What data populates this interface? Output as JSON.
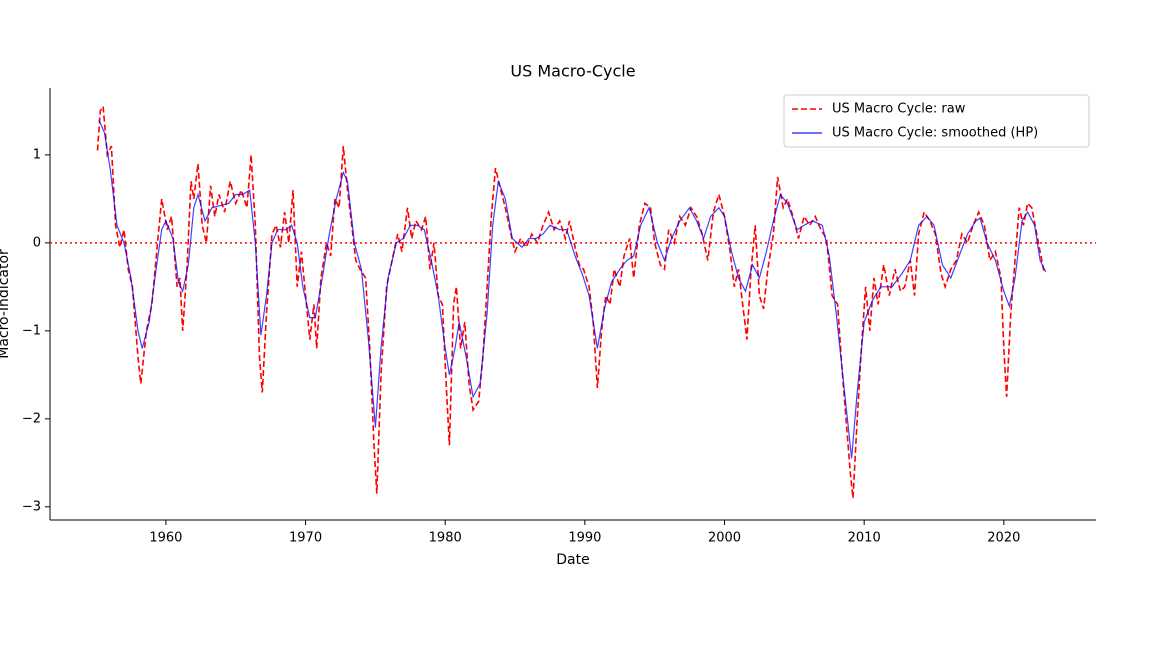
{
  "chart_data": {
    "type": "line",
    "title": "US Macro-Cycle",
    "xlabel": "Date",
    "ylabel": "Macro-Indicator",
    "xlim": [
      1951.7,
      2026.6
    ],
    "ylim": [
      -3.15,
      1.76
    ],
    "xticks": [
      1960,
      1970,
      1980,
      1990,
      2000,
      2010,
      2020
    ],
    "yticks": [
      {
        "value": -3,
        "label": "−3"
      },
      {
        "value": -2,
        "label": "−2"
      },
      {
        "value": -1,
        "label": "−1"
      },
      0,
      1
    ],
    "hline": 0,
    "hline_color": "red",
    "legend": "upper right",
    "series": [
      {
        "name": "US Macro Cycle: raw",
        "color": "red",
        "linestyle": "dashed",
        "x": [
          1955.1,
          1955.3,
          1955.5,
          1955.8,
          1956.1,
          1956.4,
          1956.7,
          1957,
          1957.3,
          1957.6,
          1958,
          1958.2,
          1958.6,
          1959,
          1959.4,
          1959.7,
          1960.1,
          1960.4,
          1960.8,
          1961,
          1961.2,
          1961.5,
          1961.8,
          1962,
          1962.3,
          1962.6,
          1962.9,
          1963.2,
          1963.5,
          1963.8,
          1964.2,
          1964.6,
          1965,
          1965.4,
          1965.8,
          1966.1,
          1966.4,
          1966.7,
          1966.9,
          1967.2,
          1967.6,
          1967.9,
          1968.2,
          1968.5,
          1968.8,
          1969.1,
          1969.4,
          1969.7,
          1970,
          1970.3,
          1970.6,
          1970.8,
          1971.1,
          1971.5,
          1971.8,
          1972.1,
          1972.4,
          1972.7,
          1973,
          1973.3,
          1973.6,
          1973.9,
          1974.3,
          1974.6,
          1974.9,
          1975.1,
          1975.4,
          1975.8,
          1976.2,
          1976.6,
          1976.9,
          1977.3,
          1977.6,
          1977.9,
          1978.3,
          1978.6,
          1978.9,
          1979.2,
          1979.5,
          1979.8,
          1980.1,
          1980.3,
          1980.6,
          1980.8,
          1981.1,
          1981.4,
          1981.7,
          1982,
          1982.4,
          1982.7,
          1983,
          1983.3,
          1983.6,
          1983.9,
          1984.3,
          1984.7,
          1985,
          1985.4,
          1985.8,
          1986.2,
          1986.6,
          1987,
          1987.4,
          1987.8,
          1988.2,
          1988.6,
          1988.9,
          1989.3,
          1989.6,
          1989.9,
          1990.3,
          1990.6,
          1990.9,
          1991.2,
          1991.5,
          1991.8,
          1992.1,
          1992.5,
          1992.8,
          1993.2,
          1993.5,
          1993.9,
          1994.3,
          1994.7,
          1995,
          1995.4,
          1995.7,
          1996,
          1996.4,
          1996.8,
          1997.2,
          1997.6,
          1998,
          1998.4,
          1998.8,
          1999.2,
          1999.6,
          2000,
          2000.4,
          2000.7,
          2001,
          2001.3,
          2001.6,
          2001.9,
          2002.2,
          2002.5,
          2002.8,
          2003.1,
          2003.5,
          2003.8,
          2004.2,
          2004.5,
          2004.9,
          2005.3,
          2005.7,
          2006.1,
          2006.5,
          2006.9,
          2007.3,
          2007.7,
          2008.1,
          2008.4,
          2008.7,
          2009,
          2009.2,
          2009.5,
          2009.8,
          2010.1,
          2010.4,
          2010.7,
          2011,
          2011.4,
          2011.8,
          2012.2,
          2012.6,
          2012.9,
          2013.3,
          2013.6,
          2013.9,
          2014.3,
          2014.7,
          2015.1,
          2015.5,
          2015.8,
          2016.2,
          2016.6,
          2017,
          2017.4,
          2017.8,
          2018.2,
          2018.6,
          2019,
          2019.4,
          2019.8,
          2020,
          2020.2,
          2020.5,
          2020.8,
          2021.1,
          2021.4,
          2021.7,
          2022,
          2022.3,
          2022.6,
          2022.9
        ],
        "values": [
          1.05,
          1.5,
          1.55,
          1.0,
          1.1,
          0.2,
          -0.05,
          0.15,
          -0.3,
          -0.5,
          -1.3,
          -1.6,
          -1.0,
          -0.7,
          0.0,
          0.5,
          0.15,
          0.3,
          -0.5,
          -0.4,
          -1.0,
          -0.3,
          0.7,
          0.5,
          0.9,
          0.2,
          0.0,
          0.65,
          0.3,
          0.55,
          0.35,
          0.7,
          0.45,
          0.6,
          0.4,
          1.0,
          0.2,
          -1.3,
          -1.7,
          -0.8,
          0.1,
          0.2,
          -0.05,
          0.35,
          0.0,
          0.6,
          -0.5,
          -0.1,
          -0.6,
          -1.1,
          -0.7,
          -1.2,
          -0.4,
          0.0,
          -0.15,
          0.5,
          0.4,
          1.1,
          0.6,
          0.2,
          -0.2,
          -0.3,
          -0.4,
          -1.2,
          -2.3,
          -2.85,
          -1.5,
          -0.5,
          -0.2,
          0.1,
          -0.1,
          0.4,
          0.05,
          0.25,
          0.15,
          0.3,
          -0.3,
          0.0,
          -0.6,
          -0.7,
          -1.7,
          -2.3,
          -0.7,
          -0.5,
          -1.2,
          -0.9,
          -1.6,
          -1.9,
          -1.8,
          -1.3,
          -0.5,
          0.3,
          0.85,
          0.65,
          0.4,
          0.1,
          -0.1,
          0.05,
          -0.05,
          0.1,
          0.0,
          0.2,
          0.35,
          0.15,
          0.25,
          0.05,
          0.25,
          -0.05,
          -0.25,
          -0.3,
          -0.5,
          -0.9,
          -1.65,
          -1.0,
          -0.6,
          -0.7,
          -0.3,
          -0.5,
          -0.15,
          0.05,
          -0.4,
          0.2,
          0.45,
          0.4,
          0.0,
          -0.25,
          -0.3,
          0.15,
          0.0,
          0.3,
          0.2,
          0.4,
          0.3,
          0.1,
          -0.2,
          0.35,
          0.55,
          0.3,
          -0.1,
          -0.5,
          -0.3,
          -0.7,
          -1.1,
          -0.3,
          0.2,
          -0.6,
          -0.75,
          -0.3,
          0.1,
          0.75,
          0.4,
          0.5,
          0.3,
          0.05,
          0.3,
          0.2,
          0.3,
          0.15,
          0.05,
          -0.6,
          -0.7,
          -1.4,
          -2.0,
          -2.6,
          -2.9,
          -2.0,
          -1.2,
          -0.5,
          -1.0,
          -0.4,
          -0.7,
          -0.25,
          -0.6,
          -0.3,
          -0.55,
          -0.5,
          -0.2,
          -0.6,
          0.1,
          0.35,
          0.25,
          0.1,
          -0.35,
          -0.5,
          -0.3,
          -0.2,
          0.1,
          0.0,
          0.2,
          0.35,
          0.2,
          -0.2,
          -0.1,
          -0.4,
          -1.2,
          -1.75,
          -0.8,
          -0.2,
          0.4,
          0.2,
          0.45,
          0.4,
          0.15,
          -0.1,
          -0.35
        ]
      },
      {
        "name": "US Macro Cycle: smoothed (HP)",
        "color": "blue",
        "linestyle": "solid",
        "x": [
          1955.2,
          1955.6,
          1956,
          1956.5,
          1957,
          1957.5,
          1958,
          1958.3,
          1958.8,
          1959.3,
          1959.7,
          1960,
          1960.5,
          1960.9,
          1961.2,
          1961.6,
          1962,
          1962.3,
          1962.8,
          1963.3,
          1963.8,
          1964.5,
          1965,
          1965.5,
          1966,
          1966.4,
          1966.8,
          1967.2,
          1967.6,
          1968,
          1968.6,
          1969,
          1969.4,
          1969.8,
          1970.3,
          1970.7,
          1971.2,
          1971.7,
          1972.2,
          1972.7,
          1973,
          1973.5,
          1974,
          1974.5,
          1975,
          1975.4,
          1975.9,
          1976.5,
          1977,
          1977.5,
          1978,
          1978.5,
          1979,
          1979.5,
          1980,
          1980.3,
          1980.7,
          1981,
          1981.5,
          1982,
          1982.5,
          1983,
          1983.4,
          1983.8,
          1984.3,
          1984.8,
          1985.5,
          1986,
          1986.5,
          1987,
          1987.5,
          1988.2,
          1988.7,
          1989.3,
          1989.8,
          1990.3,
          1990.9,
          1991.4,
          1991.9,
          1992.5,
          1993,
          1993.5,
          1994,
          1994.6,
          1995.2,
          1995.7,
          1996.2,
          1996.8,
          1997.5,
          1998,
          1998.5,
          1999,
          1999.6,
          2000,
          2000.5,
          2001,
          2001.5,
          2002,
          2002.5,
          2003,
          2003.5,
          2004,
          2004.5,
          2005.2,
          2005.7,
          2006.3,
          2007,
          2007.5,
          2008,
          2008.6,
          2009.1,
          2009.5,
          2010,
          2010.6,
          2011.2,
          2012,
          2012.7,
          2013.3,
          2013.9,
          2014.5,
          2015,
          2015.6,
          2016.2,
          2016.8,
          2017.4,
          2018,
          2018.3,
          2018.8,
          2019.4,
          2020,
          2020.4,
          2020.8,
          2021.3,
          2021.7,
          2022.2,
          2022.6,
          2023
        ],
        "values": [
          1.4,
          1.25,
          0.85,
          0.2,
          0.0,
          -0.4,
          -1.0,
          -1.2,
          -0.9,
          -0.3,
          0.15,
          0.25,
          0.05,
          -0.45,
          -0.55,
          -0.25,
          0.4,
          0.55,
          0.25,
          0.4,
          0.42,
          0.45,
          0.55,
          0.55,
          0.6,
          0.0,
          -1.05,
          -0.6,
          0.0,
          0.15,
          0.15,
          0.2,
          0.0,
          -0.5,
          -0.85,
          -0.85,
          -0.4,
          0.1,
          0.5,
          0.8,
          0.7,
          0.0,
          -0.3,
          -1.1,
          -2.1,
          -1.2,
          -0.4,
          0.0,
          0.05,
          0.2,
          0.2,
          0.15,
          -0.2,
          -0.6,
          -1.2,
          -1.5,
          -1.2,
          -0.9,
          -1.3,
          -1.75,
          -1.6,
          -0.8,
          0.2,
          0.7,
          0.5,
          0.05,
          -0.05,
          0.05,
          0.05,
          0.1,
          0.2,
          0.15,
          0.15,
          -0.15,
          -0.35,
          -0.6,
          -1.2,
          -0.75,
          -0.45,
          -0.3,
          -0.2,
          -0.15,
          0.2,
          0.4,
          0.0,
          -0.2,
          0.05,
          0.25,
          0.4,
          0.25,
          0.05,
          0.3,
          0.4,
          0.3,
          -0.1,
          -0.4,
          -0.55,
          -0.25,
          -0.4,
          -0.1,
          0.25,
          0.55,
          0.45,
          0.15,
          0.2,
          0.25,
          0.2,
          -0.15,
          -0.8,
          -1.7,
          -2.45,
          -1.7,
          -0.9,
          -0.65,
          -0.5,
          -0.5,
          -0.35,
          -0.2,
          0.2,
          0.3,
          0.2,
          -0.25,
          -0.4,
          -0.15,
          0.1,
          0.25,
          0.28,
          0.0,
          -0.2,
          -0.55,
          -0.72,
          -0.4,
          0.25,
          0.35,
          0.2,
          -0.2,
          -0.33
        ]
      }
    ]
  }
}
